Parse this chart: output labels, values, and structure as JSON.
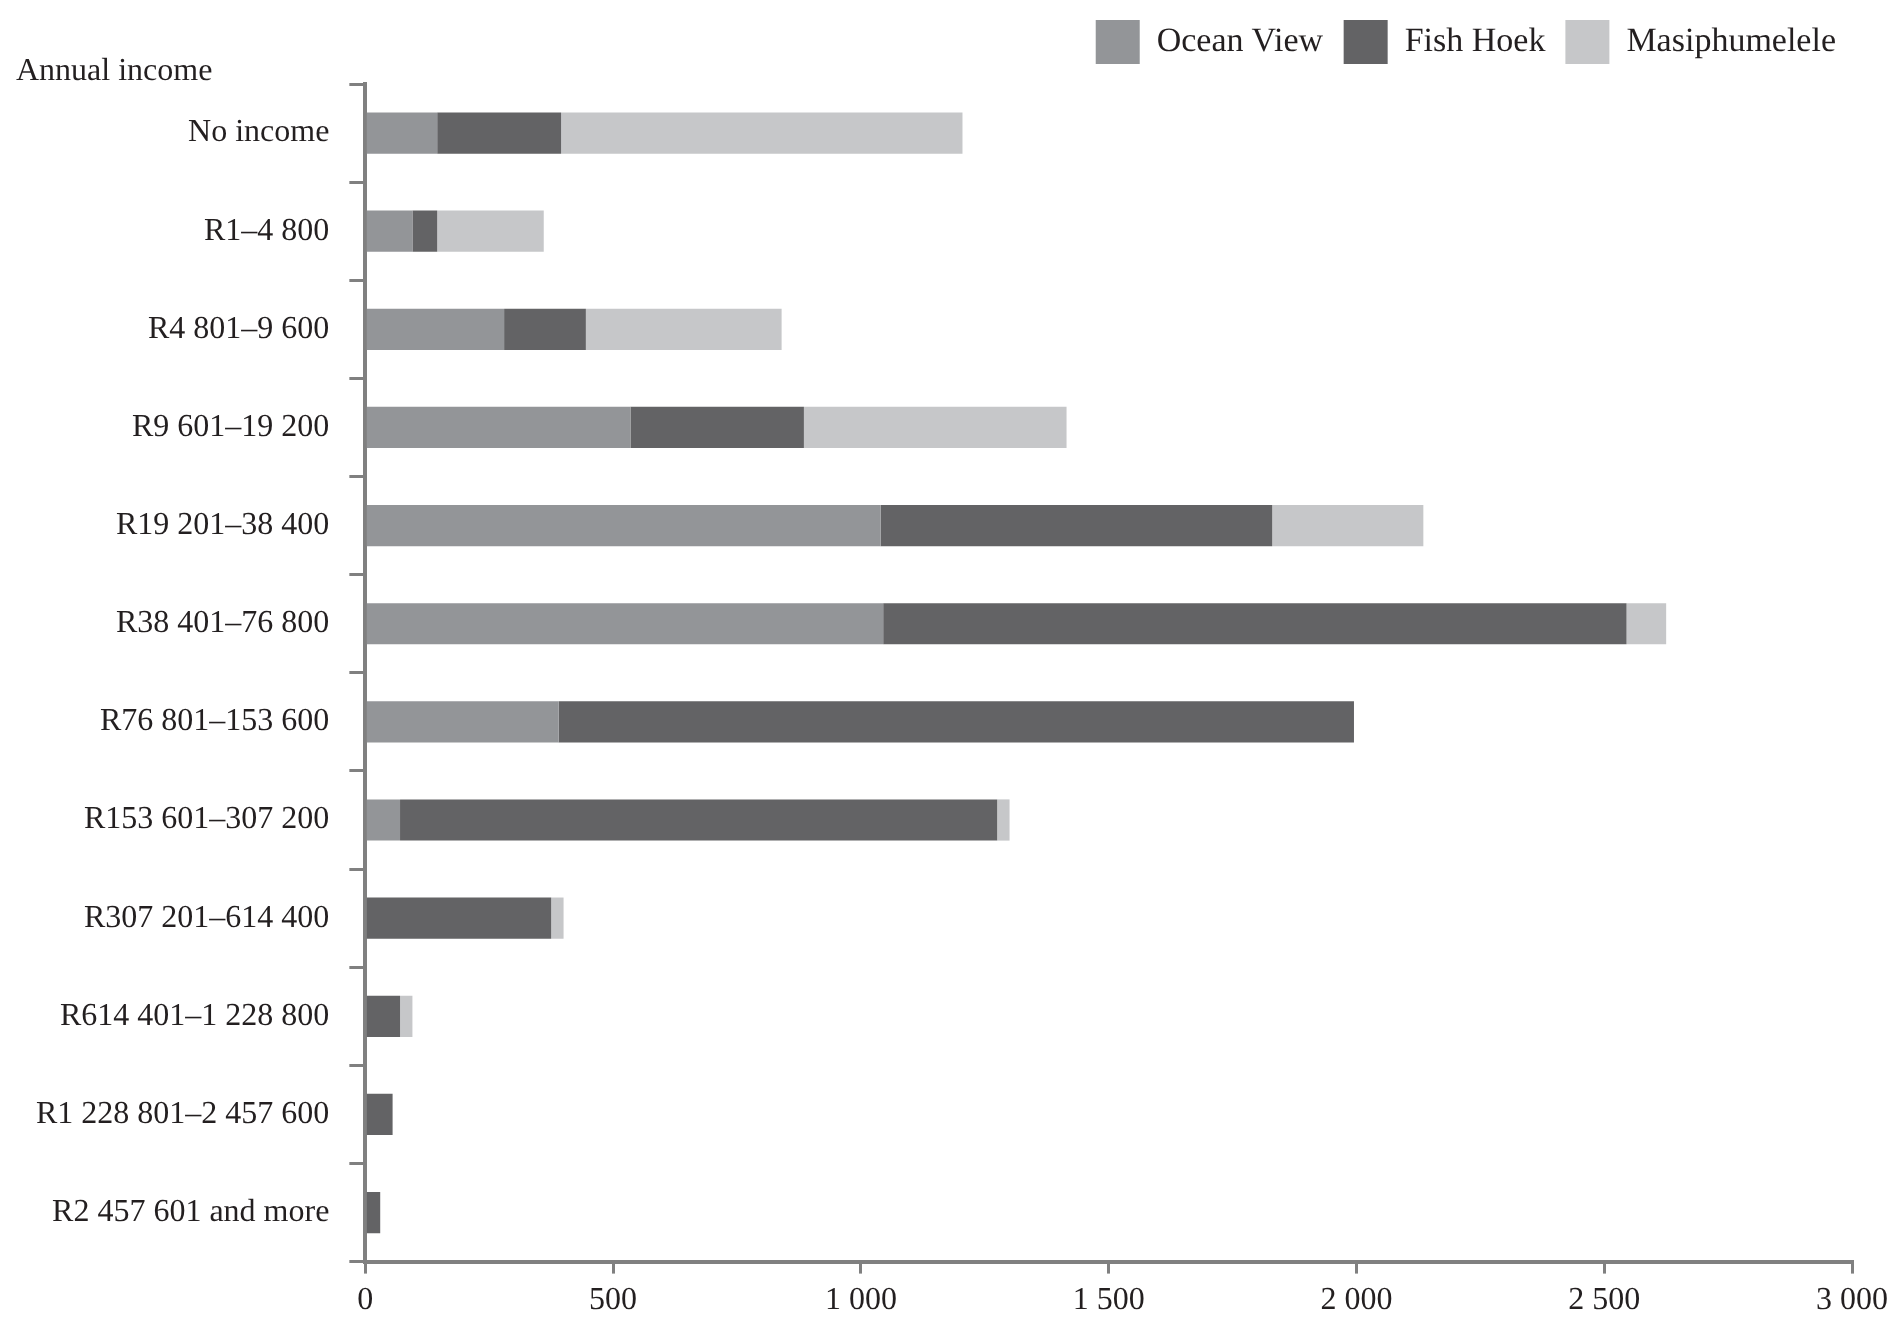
{
  "chart_data": {
    "type": "bar",
    "orientation": "horizontal",
    "stacked": true,
    "ylabel": "Annual income",
    "categories": [
      "No income",
      "R1–4 800",
      "R4 801–9 600",
      "R9 601–19 200",
      "R19 201–38 400",
      "R38 401–76 800",
      "R76 801–153 600",
      "R153 601–307 200",
      "R307 201–614 400",
      "R614 401–1 228 800",
      "R1 228 801–2 457 600",
      "R2 457 601 and more"
    ],
    "series": [
      {
        "name": "Ocean View",
        "color": "#939598",
        "values": [
          145,
          95,
          280,
          535,
          1040,
          1045,
          390,
          70,
          0,
          0,
          0,
          0
        ]
      },
      {
        "name": "Fish Hoek",
        "color": "#636365",
        "values": [
          250,
          50,
          165,
          350,
          790,
          1500,
          1605,
          1205,
          375,
          70,
          55,
          30
        ]
      },
      {
        "name": "Masiphumelele",
        "color": "#c6c7c9",
        "values": [
          810,
          215,
          395,
          530,
          305,
          80,
          0,
          25,
          25,
          25,
          0,
          0
        ]
      }
    ],
    "xlim": [
      0,
      3000
    ],
    "xticks": [
      {
        "value": 0,
        "label": "0"
      },
      {
        "value": 500,
        "label": "500"
      },
      {
        "value": 1000,
        "label": "1 000"
      },
      {
        "value": 1500,
        "label": "1 500"
      },
      {
        "value": 2000,
        "label": "2 000"
      },
      {
        "value": 2500,
        "label": "2 500"
      },
      {
        "value": 3000,
        "label": "3 000"
      }
    ],
    "grid": false,
    "legend": "top right"
  }
}
